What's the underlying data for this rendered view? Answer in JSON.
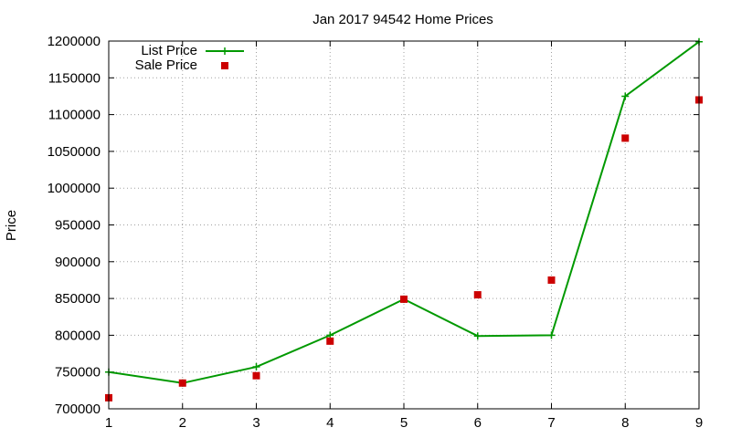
{
  "chart_data": {
    "type": "line",
    "title": "Jan 2017 94542 Home Prices",
    "xlabel": "",
    "ylabel": "Price",
    "x": [
      1,
      2,
      3,
      4,
      5,
      6,
      7,
      8,
      9
    ],
    "xlim": [
      1,
      9
    ],
    "ylim": [
      700000,
      1200000
    ],
    "x_ticks": [
      1,
      2,
      3,
      4,
      5,
      6,
      7,
      8,
      9
    ],
    "y_ticks": [
      700000,
      750000,
      800000,
      850000,
      900000,
      950000,
      1000000,
      1050000,
      1100000,
      1150000,
      1200000
    ],
    "grid": true,
    "legend_position": "top-left",
    "series": [
      {
        "name": "List Price",
        "style": "line-with-plus-markers",
        "color": "#009900",
        "values": [
          750000,
          735000,
          757000,
          800000,
          849000,
          799000,
          800000,
          1125000,
          1199000
        ]
      },
      {
        "name": "Sale Price",
        "style": "square-markers",
        "color": "#cc0000",
        "values": [
          715000,
          735000,
          745000,
          792000,
          849000,
          855000,
          875000,
          1068000,
          1120000
        ]
      }
    ]
  }
}
